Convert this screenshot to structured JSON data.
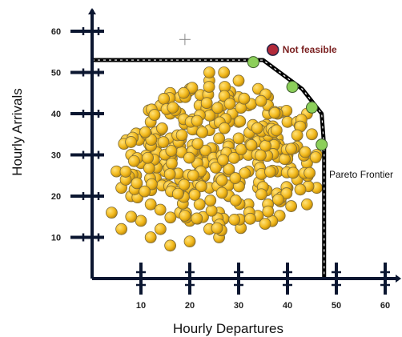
{
  "chart_data": {
    "type": "scatter",
    "title": "",
    "xlabel": "Hourly Departures",
    "ylabel": "Hourly Arrivals",
    "xlim": [
      0,
      62
    ],
    "ylim": [
      0,
      65
    ],
    "x_ticks": [
      10,
      20,
      30,
      40,
      50,
      60
    ],
    "y_ticks": [
      10,
      20,
      30,
      40,
      50,
      60
    ],
    "grid": false,
    "colors": {
      "points_fill": "#f2b91c",
      "points_stroke": "#7a6a3a",
      "frontier_point": "#8ccf5a",
      "infeasible_point": "#b22a3a",
      "frontier_line": "#000000",
      "axis": "#0b1630",
      "infeasible_text": "#7a1f1f"
    },
    "cluster": {
      "description_points": [
        [
          5,
          26
        ],
        [
          4,
          16
        ],
        [
          6,
          22
        ],
        [
          8,
          20
        ],
        [
          9,
          25
        ],
        [
          10,
          28
        ],
        [
          8,
          30
        ],
        [
          10,
          35
        ],
        [
          12,
          18
        ],
        [
          12,
          24
        ],
        [
          12,
          32
        ],
        [
          12,
          38
        ],
        [
          14,
          42
        ],
        [
          16,
          40
        ],
        [
          16,
          45
        ],
        [
          18,
          44
        ],
        [
          15,
          28
        ],
        [
          18,
          24
        ],
        [
          18,
          32
        ],
        [
          20,
          38
        ],
        [
          20,
          22
        ],
        [
          22,
          30
        ],
        [
          22,
          42
        ],
        [
          24,
          48
        ],
        [
          24,
          36
        ],
        [
          26,
          40
        ],
        [
          26,
          28
        ],
        [
          28,
          32
        ],
        [
          28,
          45
        ],
        [
          30,
          38
        ],
        [
          30,
          30
        ],
        [
          30,
          24
        ],
        [
          32,
          42
        ],
        [
          32,
          34
        ],
        [
          34,
          36
        ],
        [
          34,
          28
        ],
        [
          36,
          40
        ],
        [
          36,
          30
        ],
        [
          38,
          34
        ],
        [
          38,
          26
        ],
        [
          40,
          38
        ],
        [
          40,
          30
        ],
        [
          42,
          32
        ],
        [
          42,
          24
        ],
        [
          44,
          28
        ],
        [
          44,
          18
        ],
        [
          45,
          35
        ],
        [
          46,
          22
        ],
        [
          46,
          30
        ],
        [
          18,
          16
        ],
        [
          20,
          14
        ],
        [
          22,
          18
        ],
        [
          24,
          12
        ],
        [
          26,
          16
        ],
        [
          28,
          20
        ],
        [
          30,
          14
        ],
        [
          32,
          18
        ],
        [
          34,
          22
        ],
        [
          36,
          18
        ],
        [
          14,
          12
        ],
        [
          12,
          10
        ],
        [
          16,
          8
        ],
        [
          20,
          9
        ],
        [
          26,
          10
        ],
        [
          10,
          14
        ],
        [
          38,
          20
        ],
        [
          40,
          22
        ],
        [
          14,
          36
        ],
        [
          16,
          34
        ],
        [
          22,
          26
        ],
        [
          24,
          22
        ],
        [
          26,
          34
        ],
        [
          28,
          38
        ],
        [
          30,
          44
        ],
        [
          32,
          26
        ],
        [
          34,
          46
        ],
        [
          36,
          44
        ],
        [
          20,
          46
        ],
        [
          18,
          40
        ],
        [
          22,
          36
        ],
        [
          24,
          30
        ],
        [
          26,
          24
        ],
        [
          28,
          26
        ],
        [
          30,
          34
        ],
        [
          32,
          30
        ],
        [
          38,
          40
        ],
        [
          42,
          38
        ],
        [
          44,
          40
        ],
        [
          24,
          50
        ],
        [
          27,
          50
        ],
        [
          30,
          48
        ],
        [
          6,
          12
        ],
        [
          8,
          15
        ]
      ]
    },
    "frontier": {
      "line": [
        [
          0,
          53
        ],
        [
          35,
          53
        ],
        [
          43,
          46
        ],
        [
          47,
          40
        ],
        [
          47.5,
          32
        ],
        [
          47.5,
          0
        ]
      ],
      "points": [
        [
          33,
          52.5
        ],
        [
          41,
          46.5
        ],
        [
          45,
          41.5
        ],
        [
          47,
          32.5
        ]
      ],
      "label": "Pareto Frontier"
    },
    "infeasible": {
      "point": [
        37,
        55.5
      ],
      "label": "Not feasible"
    },
    "crosshair": [
      19,
      58
    ]
  }
}
